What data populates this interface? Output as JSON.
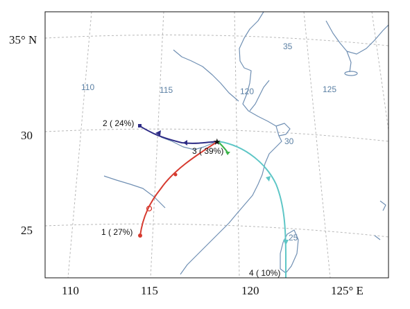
{
  "axes": {
    "y_labels": [
      "35° N",
      "30",
      "25"
    ],
    "x_labels": [
      "110",
      "115",
      "120",
      "125° E"
    ]
  },
  "grid_labels": {
    "lon": [
      "110",
      "115",
      "120",
      "125"
    ],
    "lat": [
      "35",
      "30",
      "25"
    ]
  },
  "clusters": [
    {
      "id": 1,
      "label": "1 ( 27%)",
      "color": "#d63a2f"
    },
    {
      "id": 2,
      "label": "2 ( 24%)",
      "color": "#2e2c86"
    },
    {
      "id": 3,
      "label": "3 ( 39%)",
      "color": "#3bb34a"
    },
    {
      "id": 4,
      "label": "4 ( 10%)",
      "color": "#5ec6c6"
    }
  ],
  "colors": {
    "coast": "#6f8fb3",
    "grid": "#b8b8b8",
    "origin_star": "#111111"
  }
}
